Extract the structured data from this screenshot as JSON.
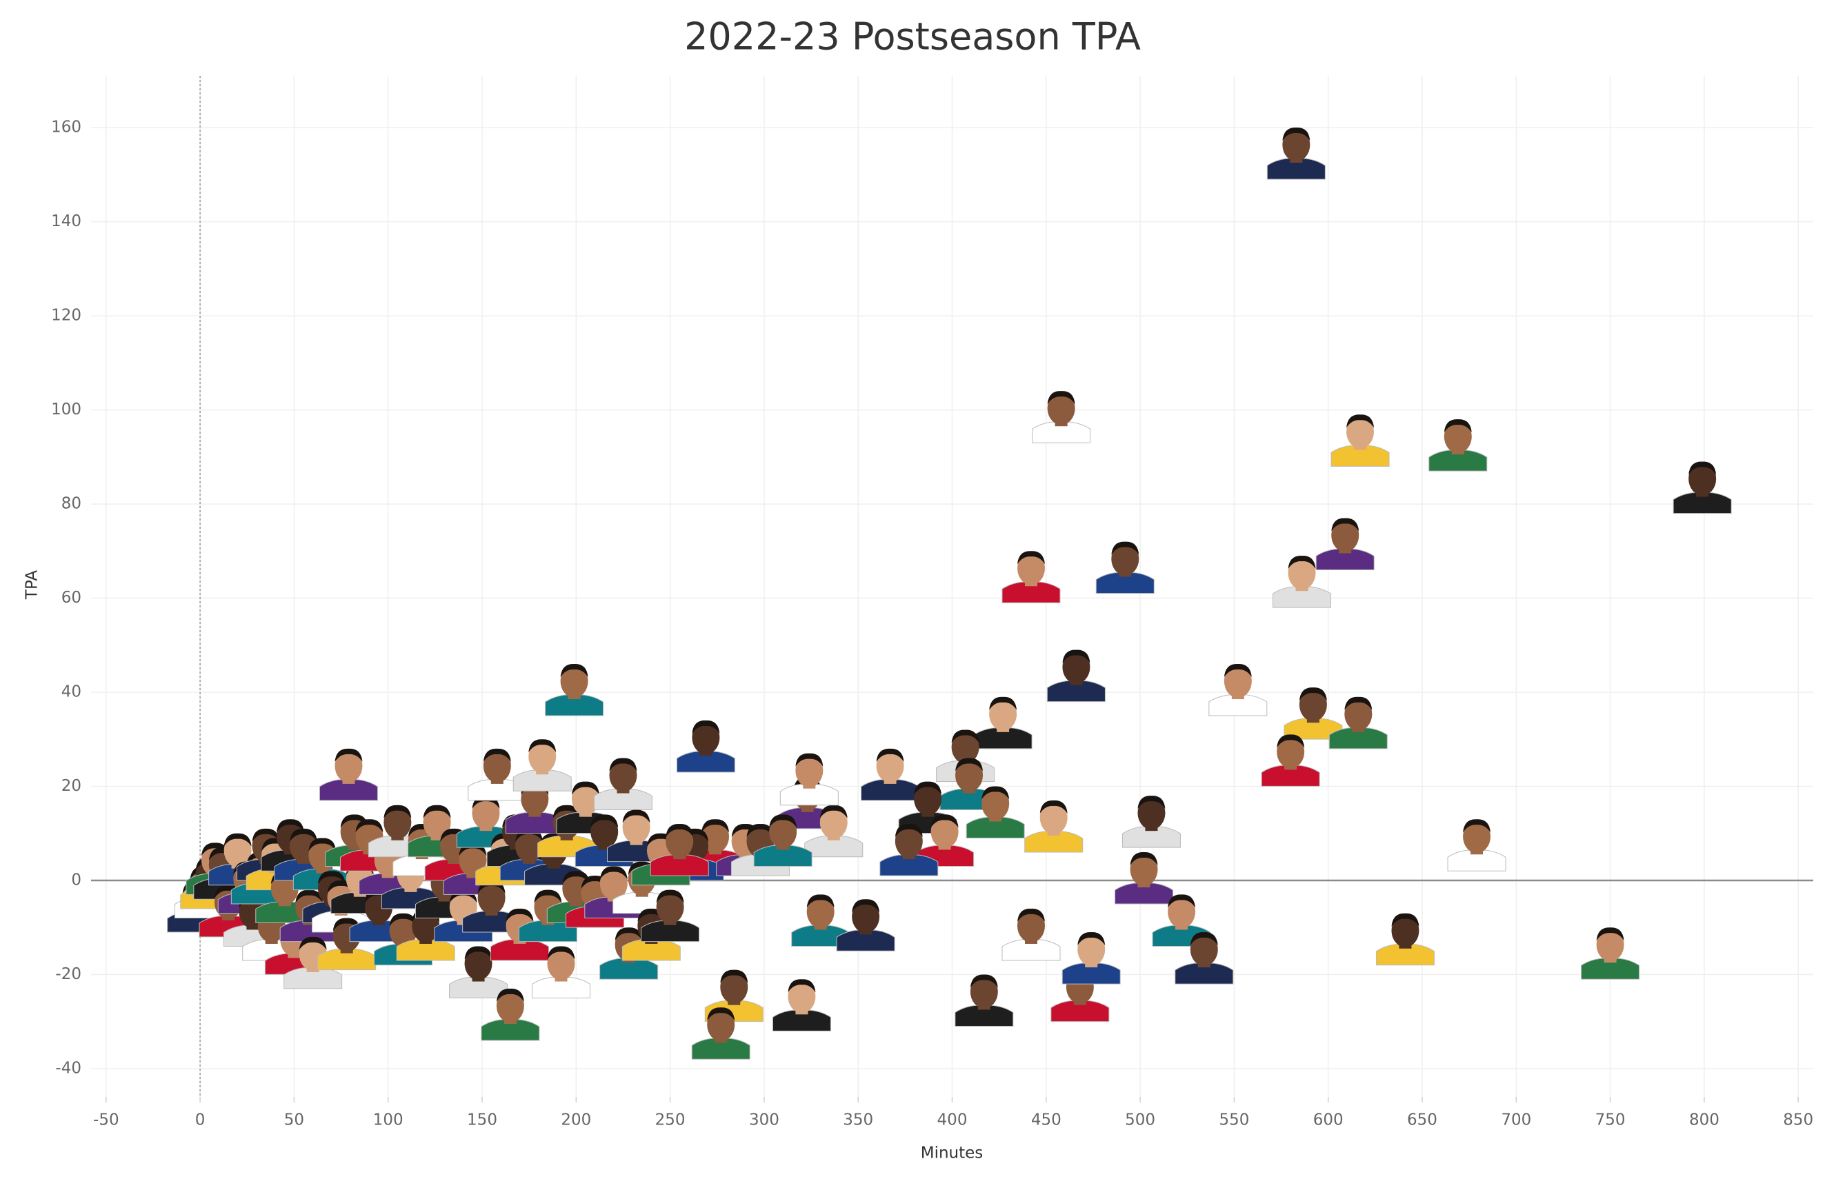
{
  "chart_data": {
    "type": "scatter",
    "title": "2022-23 Postseason TPA",
    "x_label": "Minutes",
    "y_label": "TPA",
    "xlim": [
      -58,
      858
    ],
    "ylim": [
      -46,
      171
    ],
    "xticks": [
      -50,
      0,
      50,
      100,
      150,
      200,
      250,
      300,
      350,
      400,
      450,
      500,
      550,
      600,
      650,
      700,
      750,
      800,
      850
    ],
    "yticks": [
      -40,
      -20,
      0,
      20,
      40,
      60,
      80,
      100,
      120,
      140,
      160
    ],
    "grid": true,
    "zero_lines": true,
    "x": [
      583,
      458,
      617,
      669,
      799,
      442,
      492,
      609,
      586,
      199,
      466,
      552,
      592,
      616,
      427,
      580,
      269,
      79,
      407,
      409,
      367,
      679,
      641,
      750,
      417,
      468,
      474,
      502,
      506,
      522,
      534,
      442,
      454,
      423,
      387,
      396,
      377,
      323,
      337,
      330,
      354,
      324,
      284,
      277,
      320,
      274,
      263,
      290,
      298,
      310,
      -2,
      2,
      5,
      8,
      12,
      15,
      20,
      25,
      28,
      32,
      35,
      38,
      40,
      45,
      48,
      50,
      55,
      58,
      60,
      65,
      70,
      75,
      78,
      82,
      85,
      90,
      95,
      100,
      105,
      108,
      112,
      118,
      120,
      126,
      130,
      135,
      140,
      145,
      148,
      152,
      155,
      158,
      162,
      165,
      168,
      170,
      175,
      178,
      182,
      185,
      188,
      192,
      195,
      200,
      205,
      210,
      215,
      220,
      225,
      228,
      232,
      235,
      240,
      245,
      250,
      255
    ],
    "values": [
      154,
      98,
      93,
      92,
      83,
      64,
      66,
      71,
      63,
      40,
      43,
      40,
      35,
      33,
      33,
      25,
      28,
      22,
      26,
      20,
      22,
      7,
      -13,
      -16,
      -26,
      -25,
      -17,
      0,
      12,
      -9,
      -17,
      -12,
      11,
      14,
      15,
      8,
      6,
      16,
      10,
      -9,
      -10,
      21,
      -25,
      -33,
      -27,
      7,
      5,
      6,
      6,
      8,
      -6,
      -3,
      -1,
      2,
      1,
      -7,
      4,
      -2,
      -9,
      0,
      5,
      -12,
      3,
      -4,
      7,
      -15,
      5,
      -8,
      -18,
      3,
      -4,
      -6,
      -14,
      8,
      -2,
      7,
      -8,
      2,
      10,
      -13,
      -1,
      6,
      -12,
      10,
      -3,
      5,
      -8,
      2,
      -20,
      12,
      -6,
      22,
      4,
      -29,
      8,
      -12,
      5,
      15,
      24,
      -8,
      4,
      -20,
      10,
      -4,
      15,
      -5,
      8,
      -3,
      20,
      -16,
      9,
      -2,
      -12,
      4,
      -8,
      6
    ]
  }
}
